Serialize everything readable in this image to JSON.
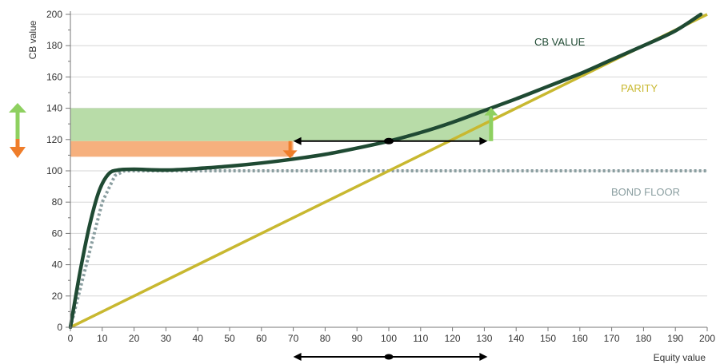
{
  "chart_data": {
    "type": "line",
    "title": "",
    "xlabel": "Equity value",
    "ylabel": "CB value",
    "xlim": [
      0,
      200
    ],
    "ylim": [
      0,
      200
    ],
    "x_ticks": [
      0,
      10,
      20,
      30,
      40,
      50,
      60,
      70,
      80,
      90,
      100,
      110,
      120,
      130,
      140,
      150,
      160,
      170,
      180,
      190,
      200
    ],
    "y_ticks": [
      0,
      20,
      40,
      60,
      80,
      100,
      120,
      140,
      160,
      180,
      200
    ],
    "grid": "horizontal",
    "series": [
      {
        "name": "CB VALUE",
        "color": "#1f4a33",
        "style": "solid",
        "x": [
          0,
          3,
          6,
          9,
          12,
          15,
          20,
          30,
          40,
          50,
          60,
          70,
          80,
          90,
          100,
          110,
          120,
          130,
          140,
          150,
          160,
          170,
          180,
          190,
          198
        ],
        "y": [
          0,
          35,
          65,
          87,
          98,
          100.5,
          101,
          100.5,
          101.5,
          103,
          105,
          107.5,
          110.5,
          114.5,
          119,
          124.5,
          131,
          138.5,
          146,
          154,
          162,
          171,
          180,
          189.5,
          200
        ]
      },
      {
        "name": "PARITY",
        "color": "#c8b830",
        "style": "solid",
        "x": [
          0,
          200
        ],
        "y": [
          0,
          200
        ]
      },
      {
        "name": "BOND FLOOR",
        "color": "#8a9ea0",
        "style": "dotted",
        "x": [
          0,
          5,
          10,
          14,
          17,
          20,
          40,
          100,
          200
        ],
        "y": [
          0,
          40,
          80,
          97,
          100,
          100,
          100,
          100,
          100
        ]
      }
    ],
    "annotations": {
      "green_band": {
        "x0": 0,
        "x1": 132,
        "y0": 119,
        "y1": 140,
        "color": "#b8dca8"
      },
      "orange_band": {
        "x0": 0,
        "x1": 70,
        "y0": 109,
        "y1": 119,
        "color": "#f6b07e"
      },
      "center_point": {
        "x": 100,
        "y": 119
      },
      "range_arrow": {
        "x0": 70,
        "x1": 131,
        "y": 119
      },
      "green_up_arrow": {
        "x": 132,
        "y0": 119,
        "y1": 140,
        "color": "#8ed060"
      },
      "orange_down_arrow": {
        "x": 70,
        "y0": 119,
        "y1": 110,
        "color": "#ef7d2a"
      }
    },
    "legend_position": "inline labels"
  }
}
